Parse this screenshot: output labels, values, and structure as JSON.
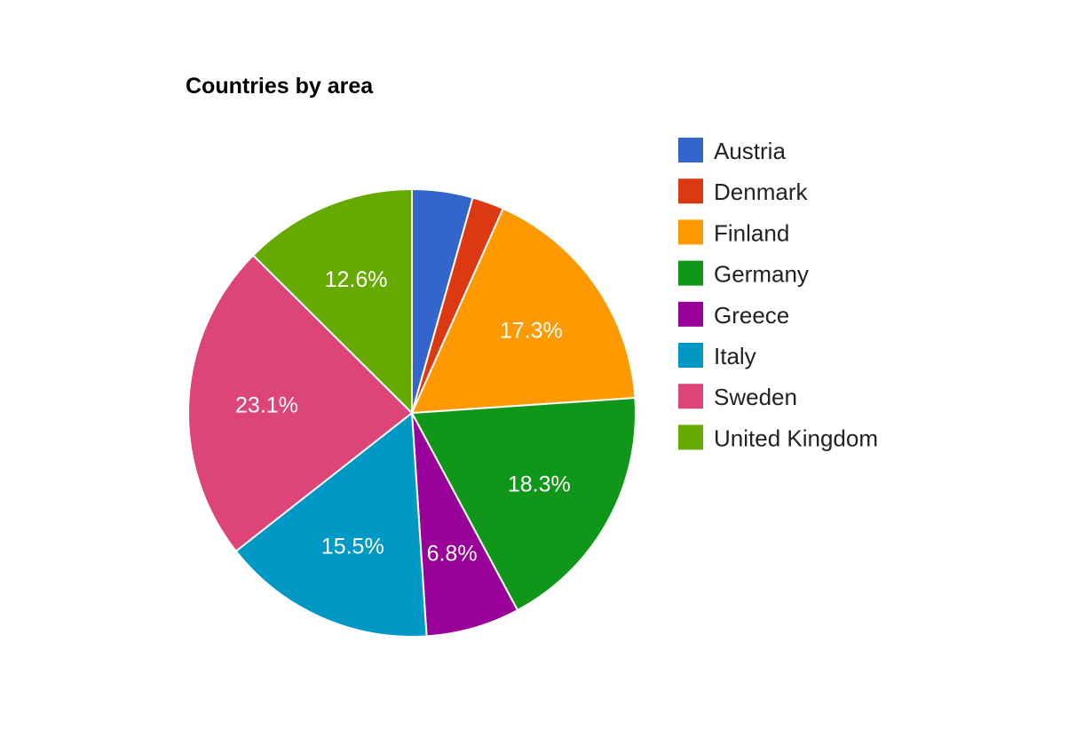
{
  "chart_data": {
    "type": "pie",
    "title": "Countries by area",
    "legend_position": "right",
    "slices": [
      {
        "label": "Austria",
        "value": 4.4,
        "display": "",
        "color": "#3366cc"
      },
      {
        "label": "Denmark",
        "value": 2.3,
        "display": "",
        "color": "#dc3912"
      },
      {
        "label": "Finland",
        "value": 17.3,
        "display": "17.3%",
        "color": "#ff9900"
      },
      {
        "label": "Germany",
        "value": 18.3,
        "display": "18.3%",
        "color": "#109618"
      },
      {
        "label": "Greece",
        "value": 6.8,
        "display": "6.8%",
        "color": "#990099"
      },
      {
        "label": "Italy",
        "value": 15.5,
        "display": "15.5%",
        "color": "#0099c6"
      },
      {
        "label": "Sweden",
        "value": 23.1,
        "display": "23.1%",
        "color": "#dd4477"
      },
      {
        "label": "United Kingdom",
        "value": 12.6,
        "display": "12.6%",
        "color": "#66aa00"
      }
    ]
  }
}
